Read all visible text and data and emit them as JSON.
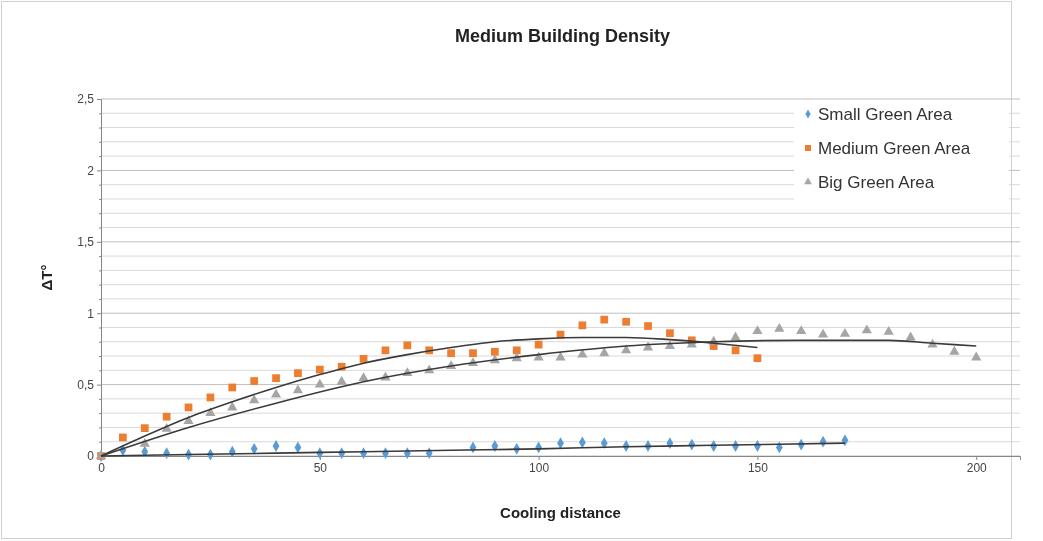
{
  "chart_data": {
    "type": "scatter",
    "title": "Medium Building Density",
    "xlabel": "Cooling distance",
    "ylabel": "ΔT°",
    "xlim": [
      0,
      210
    ],
    "xticks": [
      0,
      50,
      100,
      150,
      200
    ],
    "ylim": [
      0,
      2.5
    ],
    "yticks": [
      0,
      {
        "value": 0.1,
        "label": null
      },
      {
        "value": 0.2,
        "label": null
      },
      {
        "value": 0.3,
        "label": null
      },
      {
        "value": 0.4,
        "label": null
      },
      {
        "value": 0.5,
        "label": "0,5"
      },
      {
        "value": 0.6,
        "label": null
      },
      {
        "value": 0.7,
        "label": null
      },
      {
        "value": 0.8,
        "label": null
      },
      {
        "value": 0.9,
        "label": null
      },
      1,
      {
        "value": 1.1,
        "label": null
      },
      {
        "value": 1.2,
        "label": null
      },
      {
        "value": 1.3,
        "label": null
      },
      {
        "value": 1.4,
        "label": null
      },
      {
        "value": 1.5,
        "label": "1,5"
      },
      {
        "value": 1.6,
        "label": null
      },
      {
        "value": 1.7,
        "label": null
      },
      {
        "value": 1.8,
        "label": null
      },
      {
        "value": 1.9,
        "label": null
      },
      2,
      {
        "value": 2.1,
        "label": null
      },
      {
        "value": 2.2,
        "label": null
      },
      {
        "value": 2.3,
        "label": null
      },
      {
        "value": 2.4,
        "label": null
      },
      {
        "value": 2.5,
        "label": "2,5"
      }
    ],
    "grid": "y",
    "legend": "top right",
    "series": [
      {
        "name": "Small Green Area",
        "marker": "diamond",
        "color": "#5b9bd5",
        "x": [
          0,
          5,
          10,
          15,
          20,
          25,
          30,
          35,
          40,
          45,
          50,
          55,
          60,
          65,
          70,
          75,
          85,
          90,
          95,
          100,
          105,
          110,
          115,
          120,
          125,
          130,
          135,
          140,
          145,
          150,
          155,
          160,
          165,
          170
        ],
        "values": [
          0,
          0.04,
          0.03,
          0.02,
          0.01,
          0.01,
          0.03,
          0.05,
          0.07,
          0.06,
          0.02,
          0.02,
          0.02,
          0.02,
          0.02,
          0.02,
          0.06,
          0.07,
          0.05,
          0.06,
          0.09,
          0.095,
          0.09,
          0.07,
          0.07,
          0.09,
          0.08,
          0.07,
          0.07,
          0.07,
          0.06,
          0.08,
          0.1,
          0.11
        ]
      },
      {
        "name": "Medium Green Area",
        "marker": "square",
        "color": "#ed7d31",
        "x": [
          0,
          5,
          10,
          15,
          20,
          25,
          30,
          35,
          40,
          45,
          50,
          55,
          60,
          65,
          70,
          75,
          80,
          85,
          90,
          95,
          100,
          105,
          110,
          115,
          120,
          125,
          130,
          135,
          140,
          145,
          150
        ],
        "values": [
          0,
          0.13,
          0.195,
          0.275,
          0.34,
          0.41,
          0.48,
          0.525,
          0.545,
          0.58,
          0.605,
          0.625,
          0.68,
          0.74,
          0.775,
          0.74,
          0.72,
          0.72,
          0.73,
          0.74,
          0.78,
          0.85,
          0.915,
          0.955,
          0.94,
          0.91,
          0.86,
          0.81,
          0.77,
          0.74,
          0.685
        ]
      },
      {
        "name": "Big Green Area",
        "marker": "triangle",
        "color": "#a5a5a5",
        "x": [
          0,
          10,
          15,
          20,
          25,
          30,
          35,
          40,
          45,
          50,
          55,
          60,
          65,
          70,
          75,
          80,
          85,
          90,
          95,
          100,
          105,
          110,
          115,
          120,
          125,
          130,
          135,
          140,
          145,
          150,
          155,
          160,
          165,
          170,
          175,
          180,
          185,
          190,
          195,
          200
        ],
        "values": [
          0,
          0.085,
          0.19,
          0.245,
          0.3,
          0.34,
          0.39,
          0.43,
          0.46,
          0.5,
          0.52,
          0.545,
          0.55,
          0.58,
          0.6,
          0.63,
          0.65,
          0.67,
          0.685,
          0.69,
          0.69,
          0.71,
          0.72,
          0.74,
          0.76,
          0.77,
          0.78,
          0.8,
          0.83,
          0.875,
          0.89,
          0.875,
          0.85,
          0.855,
          0.88,
          0.87,
          0.83,
          0.78,
          0.73,
          0.69
        ]
      },
      {
        "type": "line",
        "marker": "none",
        "color": "#3a3a3a",
        "x": [
          0,
          20,
          40,
          60,
          80,
          100,
          120,
          140,
          170
        ],
        "values": [
          0,
          0.01,
          0.02,
          0.03,
          0.04,
          0.05,
          0.065,
          0.075,
          0.09
        ]
      },
      {
        "type": "line",
        "marker": "none",
        "color": "#3a3a3a",
        "x": [
          0,
          10,
          20,
          30,
          40,
          50,
          60,
          70,
          80,
          90,
          100,
          110,
          120,
          130,
          140,
          150
        ],
        "values": [
          0,
          0.14,
          0.27,
          0.38,
          0.48,
          0.57,
          0.65,
          0.71,
          0.76,
          0.8,
          0.82,
          0.83,
          0.83,
          0.815,
          0.79,
          0.76
        ]
      },
      {
        "type": "line",
        "marker": "none",
        "color": "#3a3a3a",
        "x": [
          0,
          20,
          40,
          60,
          80,
          100,
          120,
          140,
          160,
          180,
          190,
          200
        ],
        "values": [
          0,
          0.2,
          0.37,
          0.52,
          0.63,
          0.71,
          0.77,
          0.8,
          0.81,
          0.81,
          0.79,
          0.77
        ]
      }
    ]
  }
}
